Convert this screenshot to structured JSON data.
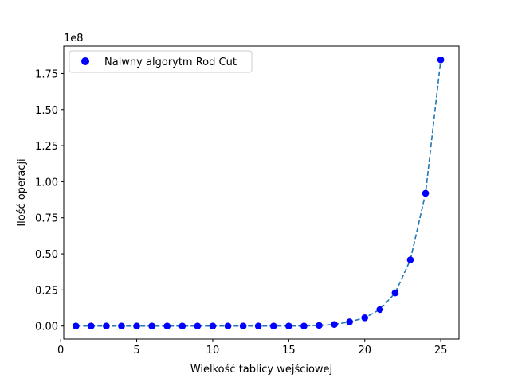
{
  "chart_data": {
    "type": "scatter",
    "title": "",
    "xlabel": "Wielkość tablicy wejściowej",
    "ylabel": "Ilość operacji",
    "y_offset_label": "1e8",
    "xlim": [
      0.2,
      26.2
    ],
    "ylim": [
      -0.09,
      1.94
    ],
    "x_ticks": [
      0,
      5,
      10,
      15,
      20,
      25
    ],
    "y_ticks": [
      0.0,
      0.25,
      0.5,
      0.75,
      1.0,
      1.25,
      1.5,
      1.75
    ],
    "y_tick_labels": [
      "0.00",
      "0.25",
      "0.50",
      "0.75",
      "1.00",
      "1.25",
      "1.50",
      "1.75"
    ],
    "grid": false,
    "legend_position": "top-left",
    "series": [
      {
        "name": "Naiwny algorytm Rod Cut",
        "marker": "circle",
        "color": "#0000ff",
        "line_style": "dashed",
        "line_color": "#1f77b4",
        "x": [
          1,
          2,
          3,
          4,
          5,
          6,
          7,
          8,
          9,
          10,
          11,
          12,
          13,
          14,
          15,
          16,
          17,
          18,
          19,
          20,
          21,
          22,
          23,
          24,
          25
        ],
        "y": [
          0.0,
          0.0,
          0.0,
          0.0,
          0.0,
          0.0,
          0.0,
          0.0,
          0.0,
          0.0,
          0.0,
          0.0,
          0.0,
          0.0,
          0.0,
          0.0,
          0.0044,
          0.0109,
          0.0287,
          0.0573,
          0.1147,
          0.2294,
          0.4588,
          0.9199,
          1.845
        ]
      }
    ]
  }
}
